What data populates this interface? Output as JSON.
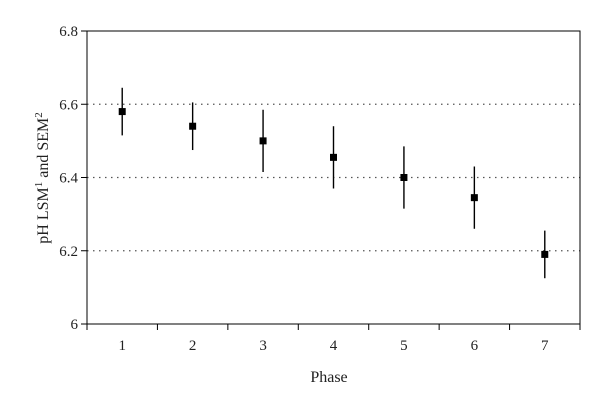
{
  "chart_data": {
    "type": "scatter",
    "xlabel": "Phase",
    "ylabel_parts": [
      "pH LSM",
      "1",
      " and SEM",
      "2"
    ],
    "categories": [
      "1",
      "2",
      "3",
      "4",
      "5",
      "6",
      "7"
    ],
    "y_ticks": [
      "6",
      "6.2",
      "6.4",
      "6.6",
      "6.8"
    ],
    "ylim": [
      6.0,
      6.8
    ],
    "grid": {
      "y_dotted_at": [
        6.2,
        6.4,
        6.6
      ]
    },
    "series": [
      {
        "values": [
          6.58,
          6.54,
          6.5,
          6.455,
          6.4,
          6.345,
          6.19
        ],
        "error": [
          0.065,
          0.065,
          0.085,
          0.085,
          0.085,
          0.085,
          0.065
        ]
      }
    ],
    "colors": {
      "marker": "#000000",
      "axis": "#000000",
      "grid": "#555555"
    }
  }
}
